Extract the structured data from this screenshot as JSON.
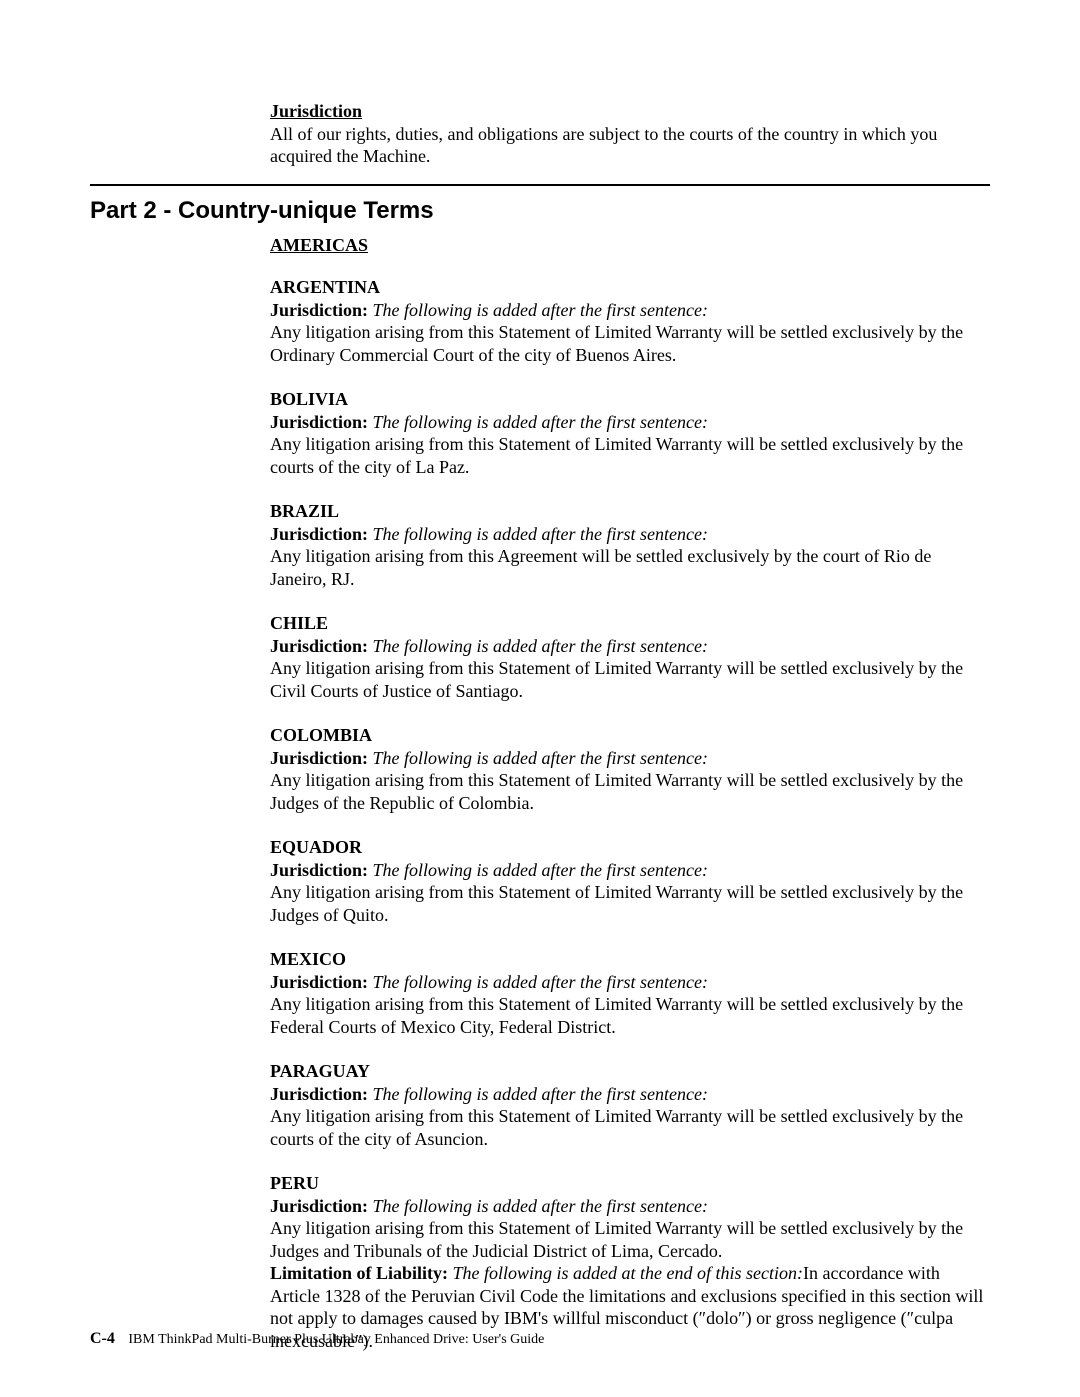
{
  "intro": {
    "heading": "Jurisdiction",
    "text": "All of our rights, duties, and obligations are subject to the courts of the country in which you acquired the Machine."
  },
  "part_title": "Part 2 - Country-unique Terms",
  "region": "AMERICAS",
  "jur_label": "Jurisdiction:",
  "jur_note": "The following is added after the first sentence:",
  "countries": {
    "argentina": {
      "name": "ARGENTINA",
      "body": "Any litigation arising from this Statement of Limited Warranty will be settled exclusively by the Ordinary Commercial Court of the city of Buenos Aires."
    },
    "bolivia": {
      "name": "BOLIVIA",
      "body": "Any litigation arising from this Statement of Limited Warranty will be settled exclusively by the courts of the city of La Paz."
    },
    "brazil": {
      "name": "BRAZIL",
      "body": "Any litigation arising from this Agreement will be settled exclusively by the court of Rio de Janeiro, RJ."
    },
    "chile": {
      "name": "CHILE",
      "body": "Any litigation arising from this Statement of Limited Warranty will be settled exclusively by the Civil Courts of Justice of Santiago."
    },
    "colombia": {
      "name": "COLOMBIA",
      "body": "Any litigation arising from this Statement of Limited Warranty will be settled exclusively by the Judges of the Republic of Colombia."
    },
    "equador": {
      "name": "EQUADOR",
      "body": "Any litigation arising from this Statement of Limited Warranty will be settled exclusively by the Judges of Quito."
    },
    "mexico": {
      "name": "MEXICO",
      "body": "Any litigation arising from this Statement of Limited Warranty will be settled exclusively by the Federal Courts of Mexico City, Federal District."
    },
    "paraguay": {
      "name": "PARAGUAY",
      "body": "Any litigation arising from this Statement of Limited Warranty will be settled exclusively by the courts of the city of Asuncion."
    },
    "peru": {
      "name": "PERU",
      "body": "Any litigation arising from this Statement of Limited Warranty will be settled exclusively by the Judges and Tribunals of the Judicial District of Lima, Cercado.",
      "liability_label": "Limitation of Liability:",
      "liability_note": "The following is added at the end of this section:",
      "liability_body": "In accordance with Article 1328 of the Peruvian Civil Code the limitations and exclusions specified in this section will not apply to damages caused by IBM's willful misconduct (″dolo″) or gross negligence (″culpa inexcusable″)."
    }
  },
  "footer": {
    "pagenum": "C-4",
    "title": "IBM ThinkPad Multi-Burner Plus Ultrabay Enhanced Drive: User's Guide"
  }
}
